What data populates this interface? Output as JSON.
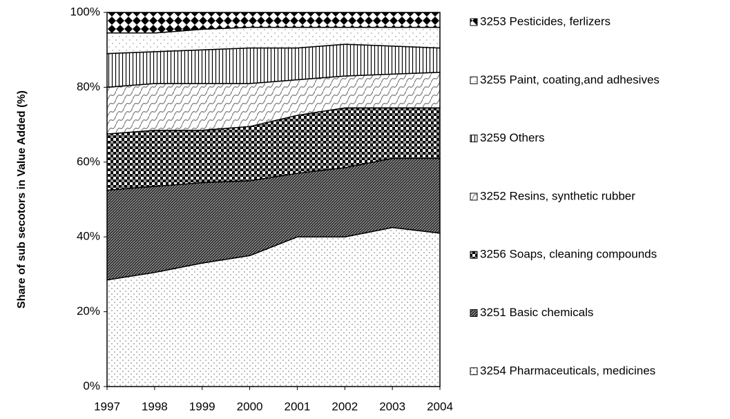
{
  "chart_data": {
    "type": "stacked_area",
    "y_axis_label": "Share of sub secotors in Value Added (%)",
    "categories": [
      "1997",
      "1998",
      "1999",
      "2000",
      "2001",
      "2002",
      "2003",
      "2004"
    ],
    "ylim": [
      0,
      100
    ],
    "yticks": [
      {
        "value": 0,
        "label": "0%"
      },
      {
        "value": 20,
        "label": "20%"
      },
      {
        "value": 40,
        "label": "40%"
      },
      {
        "value": 60,
        "label": "60%"
      },
      {
        "value": 80,
        "label": "80%"
      },
      {
        "value": 100,
        "label": "100%"
      }
    ],
    "series": [
      {
        "name": "3254 Pharmaceuticals, medicines",
        "color": "#ffffff",
        "values": [
          28.5,
          30.5,
          33,
          35,
          40,
          40,
          42.5,
          41
        ]
      },
      {
        "name": "3251 Basic chemicals",
        "color": "#333333",
        "values": [
          24,
          23,
          21.5,
          20,
          17,
          18.5,
          18.5,
          20
        ]
      },
      {
        "name": "3256 Soaps, cleaning compounds",
        "color": "#555555",
        "values": [
          15,
          15,
          14,
          14.5,
          15.5,
          16,
          13.5,
          13.5
        ]
      },
      {
        "name": "3252 Resins, synthetic rubber",
        "color": "#dddddd",
        "values": [
          12.5,
          12.5,
          12.5,
          11.5,
          9.5,
          8.5,
          9,
          9.5
        ]
      },
      {
        "name": "3259 Others",
        "color": "#eeeeee",
        "values": [
          9,
          8.5,
          9,
          9.5,
          8.5,
          8.5,
          7.5,
          6.5
        ]
      },
      {
        "name": "3255 Paint, coating,and adhesives",
        "color": "#ffffff",
        "values": [
          5.5,
          5,
          5.5,
          5.5,
          5.5,
          4.5,
          5,
          5.5
        ]
      },
      {
        "name": "3253 Pesticides, ferlizers",
        "color": "#000000",
        "values": [
          5.5,
          5.5,
          4.5,
          4,
          4,
          4,
          4,
          4
        ]
      }
    ]
  }
}
